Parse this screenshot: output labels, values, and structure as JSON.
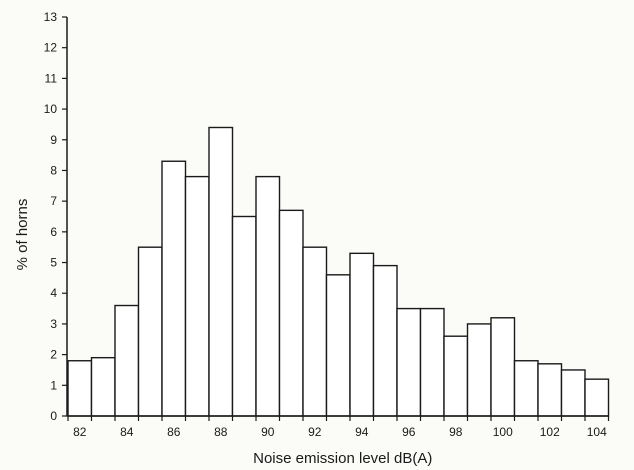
{
  "chart_data": {
    "type": "bar",
    "title": "",
    "xlabel": "Noise emission level dB(A)",
    "ylabel": "% of horns",
    "x_bins": [
      82,
      83,
      84,
      85,
      86,
      87,
      88,
      89,
      90,
      91,
      92,
      93,
      94,
      95,
      96,
      97,
      98,
      99,
      100,
      101,
      102,
      103,
      104
    ],
    "values": [
      1.8,
      1.9,
      3.6,
      5.5,
      8.3,
      7.8,
      9.4,
      6.5,
      7.8,
      6.7,
      5.5,
      4.6,
      5.3,
      4.9,
      3.5,
      3.5,
      2.6,
      3.0,
      3.2,
      1.8,
      1.7,
      1.5,
      1.2
    ],
    "x_tick_labels": [
      "82",
      "84",
      "86",
      "88",
      "90",
      "92",
      "94",
      "96",
      "98",
      "100",
      "102",
      "104"
    ],
    "y_tick_labels": [
      "0",
      "1",
      "2",
      "3",
      "4",
      "5",
      "6",
      "7",
      "8",
      "9",
      "10",
      "11",
      "12",
      "13"
    ],
    "ylim": [
      0,
      13
    ],
    "grid": false,
    "bar_fill": "#ffffff",
    "bar_stroke": "#1a1a1a"
  }
}
